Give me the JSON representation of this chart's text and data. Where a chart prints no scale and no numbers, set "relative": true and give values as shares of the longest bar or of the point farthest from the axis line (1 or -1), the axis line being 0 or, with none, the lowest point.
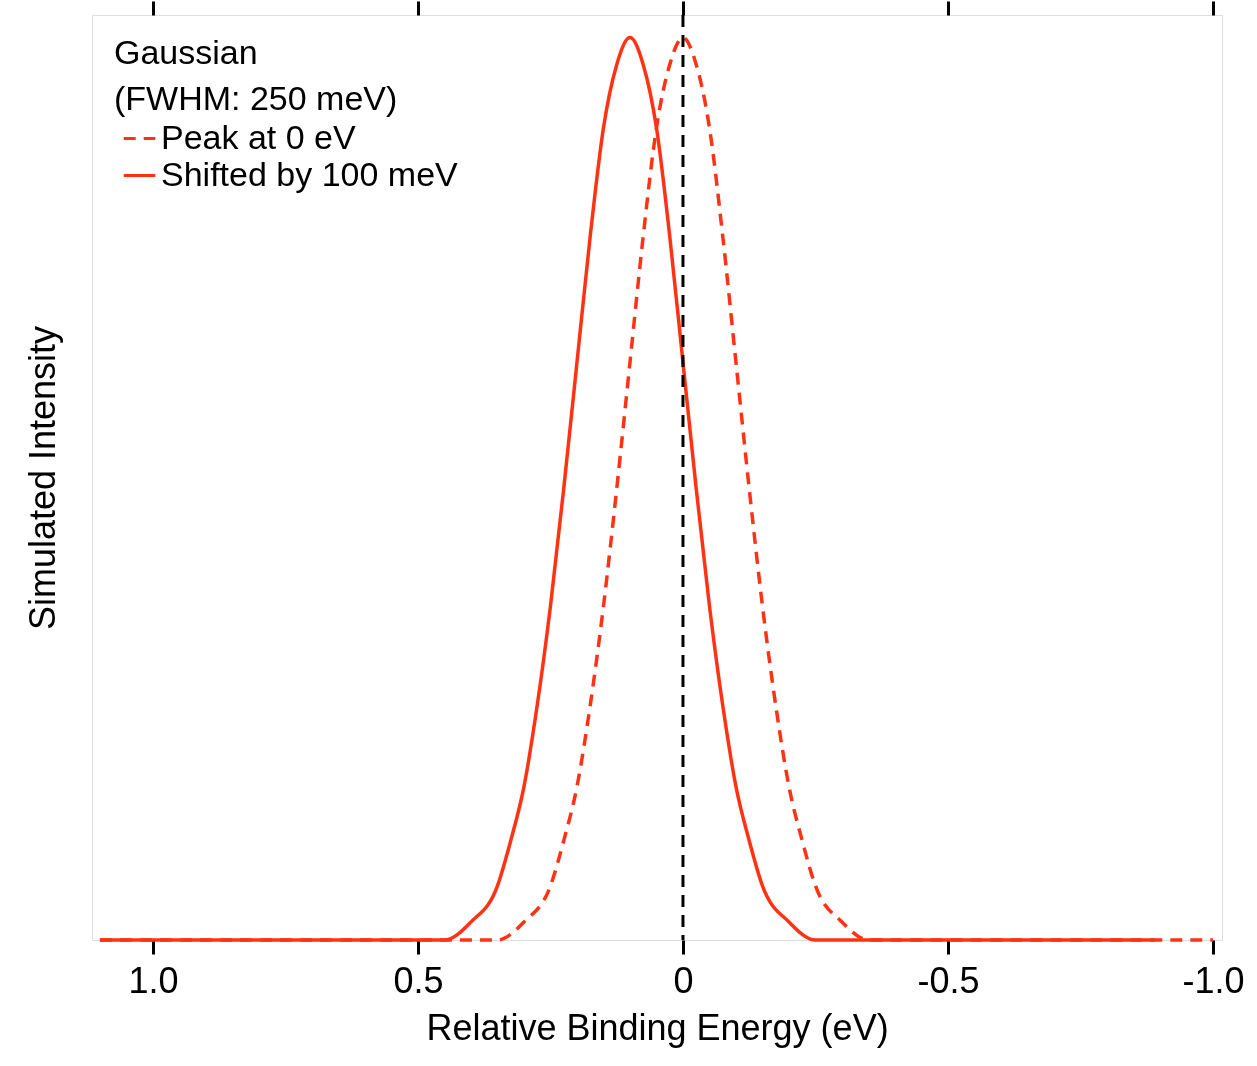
{
  "chart_data": {
    "type": "line",
    "relative": true,
    "xlabel": "Relative Binding Energy (eV)",
    "ylabel": "Simulated Intensity",
    "legend_title": "Gaussian\n(FWHM: 250 meV)",
    "legend": "top left",
    "grid": false,
    "marker": "none",
    "xlim": [
      1.115,
      -1.017
    ],
    "xticks": [
      {
        "value": 1,
        "label": "1.0"
      },
      {
        "value": 0.5,
        "label": "0.5"
      },
      0,
      {
        "value": -0.5,
        "label": "-0.5"
      },
      {
        "value": -1,
        "label": "-1.0"
      }
    ],
    "ref_lines": [
      {
        "axis": "x",
        "value": 0,
        "color": "#000000",
        "line_style": "dashed"
      }
    ],
    "series": [
      {
        "name": "Peak at 0 eV",
        "color": "#ff3314",
        "line_style": "dashed",
        "x": [
          1.1,
          0.5,
          0.4,
          0.35,
          0.3,
          0.25,
          0.225,
          0.2,
          0.175,
          0.15,
          0.125,
          0.1,
          0.075,
          0.05,
          0.025,
          0,
          -0.025,
          -0.05,
          -0.075,
          -0.1,
          -0.125,
          -0.15,
          -0.175,
          -0.2,
          -0.225,
          -0.25,
          -0.3,
          -0.35,
          -0.4,
          -0.5,
          -1.0
        ],
        "values": [
          0,
          0,
          0,
          0,
          0.02,
          0.06,
          0.11,
          0.17,
          0.26,
          0.37,
          0.5,
          0.64,
          0.78,
          0.9,
          0.97,
          1,
          0.97,
          0.9,
          0.78,
          0.64,
          0.5,
          0.37,
          0.26,
          0.17,
          0.11,
          0.06,
          0.02,
          0,
          0,
          0,
          0
        ]
      },
      {
        "name": "Shifted by 100 meV",
        "color": "#ff3314",
        "line_style": "solid",
        "x": [
          1.1,
          0.6,
          0.5,
          0.45,
          0.4,
          0.35,
          0.325,
          0.3,
          0.275,
          0.25,
          0.225,
          0.2,
          0.175,
          0.15,
          0.125,
          0.1,
          0.075,
          0.05,
          0.025,
          0,
          -0.025,
          -0.05,
          -0.075,
          -0.1,
          -0.125,
          -0.15,
          -0.2,
          -0.25,
          -0.3,
          -0.4,
          -0.89
        ],
        "values": [
          0,
          0,
          0,
          0,
          0.02,
          0.06,
          0.11,
          0.17,
          0.26,
          0.37,
          0.5,
          0.64,
          0.78,
          0.9,
          0.97,
          1,
          0.97,
          0.9,
          0.78,
          0.64,
          0.5,
          0.37,
          0.26,
          0.17,
          0.11,
          0.06,
          0.02,
          0,
          0,
          0,
          0
        ]
      }
    ]
  }
}
